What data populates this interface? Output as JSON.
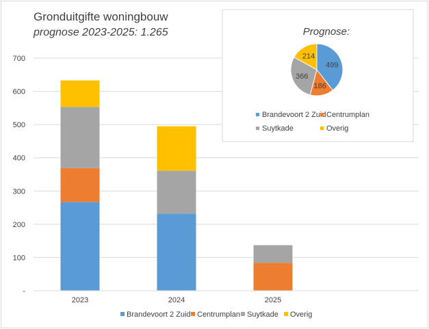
{
  "chart_data": {
    "type": "bar",
    "stacked": true,
    "title": "Gronduitgifte  woningbouw",
    "subtitle": "prognose 2023-2025: 1.265",
    "categories": [
      "2023",
      "2024",
      "2025"
    ],
    "ylim": [
      0,
      700
    ],
    "yticks": [
      {
        "value": 0,
        "label": "-"
      },
      {
        "value": 100,
        "label": "100"
      },
      {
        "value": 200,
        "label": "200"
      },
      {
        "value": 300,
        "label": "300"
      },
      {
        "value": 400,
        "label": "400"
      },
      {
        "value": 500,
        "label": "500"
      },
      {
        "value": 600,
        "label": "600"
      },
      {
        "value": 700,
        "label": "700"
      }
    ],
    "grid": true,
    "legend_position": "bottom",
    "series": [
      {
        "name": "Brandevoort 2 Zuid",
        "color": "#5b9bd5",
        "values": [
          267,
          232,
          0
        ]
      },
      {
        "name": "Centrumplan",
        "color": "#ed7d31",
        "values": [
          102,
          0,
          84
        ]
      },
      {
        "name": "Suytkade",
        "color": "#a5a5a5",
        "values": [
          184,
          129,
          53
        ]
      },
      {
        "name": "Overig",
        "color": "#ffc000",
        "values": [
          80,
          134,
          0
        ]
      }
    ],
    "inset_pie": {
      "type": "pie",
      "title": "Prognose:",
      "legend_position": "bottom",
      "slices": [
        {
          "name": "Brandevoort 2 Zuid",
          "value": 499,
          "label": "499",
          "color": "#5b9bd5",
          "label_color": "#404040"
        },
        {
          "name": "Centrumplan",
          "value": 186,
          "label": "186",
          "color": "#ed7d31",
          "label_color": "#404040"
        },
        {
          "name": "Suytkade",
          "value": 366,
          "label": "366",
          "color": "#a5a5a5",
          "label_color": "#404040"
        },
        {
          "name": "Overig",
          "value": 214,
          "label": "214",
          "color": "#ffc000",
          "label_color": "#404040"
        }
      ]
    }
  }
}
